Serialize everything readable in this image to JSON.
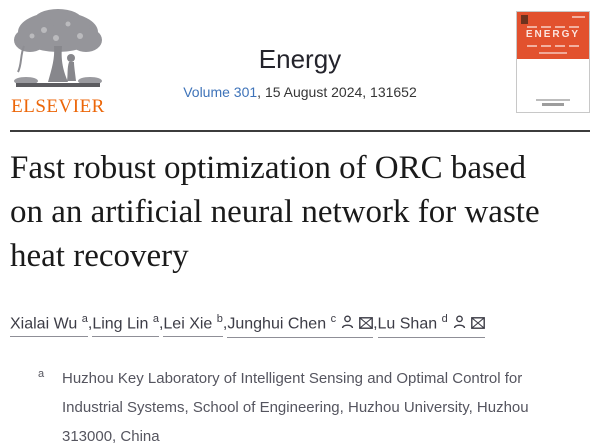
{
  "header": {
    "publisher": {
      "name": "ELSEVIER"
    },
    "journal": {
      "name": "Energy",
      "volume_link": "Volume 301",
      "issue_info": ", 15 August 2024, 131652"
    },
    "cover": {
      "title": "ENERGY"
    }
  },
  "article": {
    "title": "Fast robust optimization of ORC based on an artificial neural network for waste heat recovery",
    "author_separator": ", ",
    "authors": [
      {
        "name": "Xialai Wu",
        "sup": "a",
        "icons": []
      },
      {
        "name": "Ling Lin",
        "sup": "a",
        "icons": []
      },
      {
        "name": "Lei Xie",
        "sup": "b",
        "icons": []
      },
      {
        "name": "Junghui Chen",
        "sup": "c",
        "icons": [
          "person",
          "envelope"
        ]
      },
      {
        "name": "Lu Shan",
        "sup": "d",
        "icons": [
          "person",
          "envelope"
        ]
      }
    ],
    "affiliations": [
      {
        "sup": "a",
        "text": "Huzhou Key Laboratory of Intelligent Sensing and Optimal Control for Industrial Systems, School of Engineering, Huzhou University, Huzhou 313000, China"
      }
    ]
  },
  "colors": {
    "elsevier_orange": "#EC6608",
    "cover_orange": "#E2512E",
    "link_blue": "#3E73B9",
    "title_text": "#1A1A1A",
    "author_text": "#3C3C46",
    "affiliation_text": "#55555F",
    "divider": "#3C3C3C"
  }
}
